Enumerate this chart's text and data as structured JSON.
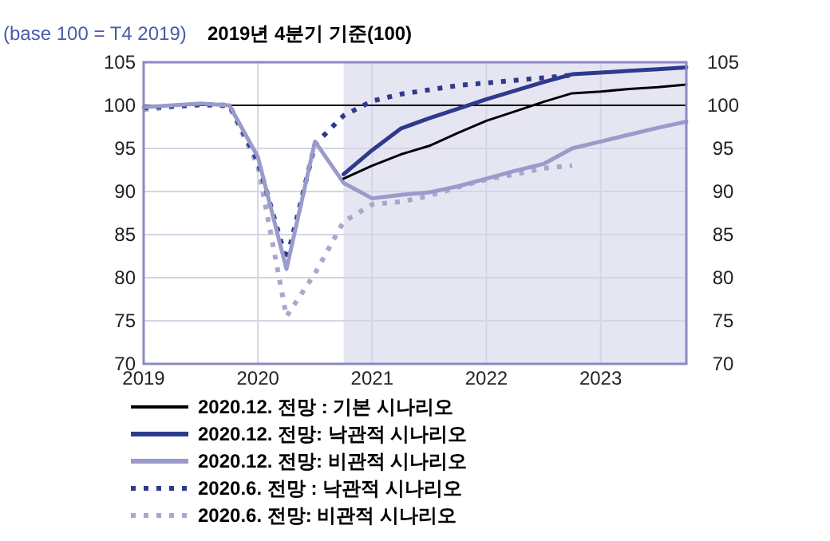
{
  "chart_data": {
    "type": "line",
    "title": "2019년 4분기 기준(100)",
    "subtitle": "(base 100 = T4 2019)",
    "xlim": [
      2019,
      2023.75
    ],
    "xticks": [
      2019,
      2020,
      2021,
      2022,
      2023
    ],
    "ylim": [
      70,
      105
    ],
    "yticks": [
      70,
      75,
      80,
      85,
      90,
      95,
      100,
      105
    ],
    "y2lim": [
      70,
      105
    ],
    "y2ticks": [
      70,
      75,
      80,
      85,
      90,
      95,
      100,
      105
    ],
    "grid": true,
    "legend": "bottom",
    "marker": "none",
    "ref_lines": [
      {
        "axis": "y",
        "value": 100,
        "color": "#000000",
        "line_style": "solid"
      }
    ],
    "bands": [
      {
        "axis": "x",
        "from": 2020.75,
        "to": 2023.75,
        "color": "#e6e6f3"
      }
    ],
    "series": [
      {
        "name": "2020.12. 전망 : 기본 시나리오",
        "color": "#000000",
        "line_style": "solid",
        "x": [
          2020.75,
          2021,
          2021.25,
          2021.5,
          2021.75,
          2022,
          2022.25,
          2022.5,
          2022.75,
          2023,
          2023.25,
          2023.5,
          2023.75
        ],
        "values": [
          91.5,
          93.0,
          94.3,
          95.3,
          96.8,
          98.2,
          99.3,
          100.4,
          101.4,
          101.6,
          101.9,
          102.1,
          102.4
        ]
      },
      {
        "name": "2020.12. 전망: 낙관적 시나리오",
        "color": "#2e3a8c",
        "line_style": "solid",
        "x": [
          2020.75,
          2021,
          2021.25,
          2021.5,
          2021.75,
          2022,
          2022.25,
          2022.5,
          2022.75,
          2023,
          2023.25,
          2023.5,
          2023.75
        ],
        "values": [
          92.0,
          94.8,
          97.3,
          98.5,
          99.6,
          100.7,
          101.7,
          102.7,
          103.6,
          103.8,
          104.0,
          104.2,
          104.4
        ]
      },
      {
        "name": "2020.12. 전망: 비관적 시나리오",
        "color": "#9a9acb",
        "line_style": "solid",
        "x": [
          2019,
          2019.25,
          2019.5,
          2019.75,
          2020,
          2020.25,
          2020.5,
          2020.75,
          2021,
          2021.25,
          2021.5,
          2021.75,
          2022,
          2022.25,
          2022.5,
          2022.75,
          2023,
          2023.25,
          2023.5,
          2023.75
        ],
        "values": [
          99.8,
          100.0,
          100.2,
          100.0,
          94.0,
          81.0,
          95.8,
          91.0,
          89.2,
          89.6,
          89.9,
          90.6,
          91.5,
          92.4,
          93.2,
          95.0,
          95.8,
          96.6,
          97.4,
          98.1
        ]
      },
      {
        "name": "2020.6. 전망 : 낙관적 시나리오",
        "color": "#2e3a8c",
        "line_style": "dotted",
        "x": [
          2019,
          2019.25,
          2019.5,
          2019.75,
          2020,
          2020.25,
          2020.5,
          2020.75,
          2021,
          2021.25,
          2021.5,
          2021.75,
          2022,
          2022.25,
          2022.5,
          2022.75
        ],
        "values": [
          99.7,
          99.9,
          100.1,
          100.0,
          93.5,
          82.0,
          95.5,
          98.8,
          100.5,
          101.3,
          101.8,
          102.3,
          102.6,
          102.9,
          103.2,
          103.5
        ]
      },
      {
        "name": "2020.6. 전망: 비관적 시나리오",
        "color": "#a8a8cc",
        "line_style": "dotted",
        "x": [
          2019,
          2019.25,
          2019.5,
          2019.75,
          2020,
          2020.25,
          2020.5,
          2020.75,
          2021,
          2021.25,
          2021.5,
          2021.75,
          2022,
          2022.25,
          2022.5,
          2022.75
        ],
        "values": [
          99.5,
          99.8,
          100.0,
          99.9,
          93.0,
          75.5,
          80.5,
          86.5,
          88.5,
          88.8,
          89.5,
          90.5,
          91.4,
          92.0,
          92.7,
          93.0
        ]
      }
    ]
  }
}
